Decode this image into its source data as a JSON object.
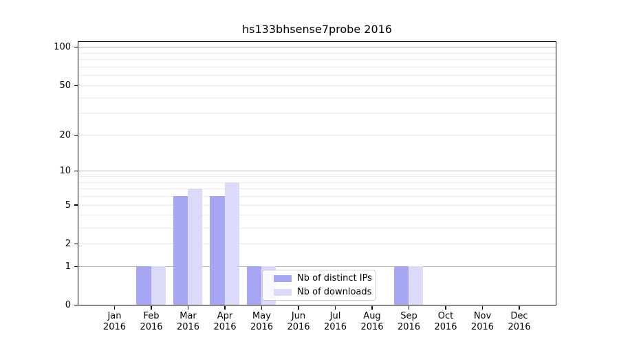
{
  "chart_data": {
    "type": "bar",
    "title": "hs133bhsense7probe 2016",
    "x_year": "2016",
    "categories": [
      "Jan",
      "Feb",
      "Mar",
      "Apr",
      "May",
      "Jun",
      "Jul",
      "Aug",
      "Sep",
      "Oct",
      "Nov",
      "Dec"
    ],
    "series": [
      {
        "name": "Nb of distinct IPs",
        "color": "#a6a6f4",
        "values": [
          0,
          1,
          6,
          6,
          1,
          0,
          0,
          0,
          1,
          0,
          0,
          0
        ]
      },
      {
        "name": "Nb of downloads",
        "color": "#dbdbf9",
        "values": [
          0,
          1,
          7,
          8,
          1,
          0,
          0,
          0,
          1,
          0,
          0,
          0
        ]
      }
    ],
    "yscale": "log1p",
    "ylim": [
      0,
      110
    ],
    "xlabel": "",
    "ylabel": "",
    "y_ticks": [
      0,
      1,
      2,
      5,
      10,
      20,
      50,
      100
    ],
    "y_gridlines_major": [
      1,
      10,
      100
    ],
    "y_gridlines_minor": [
      2,
      3,
      4,
      5,
      6,
      7,
      8,
      9,
      20,
      30,
      40,
      50,
      60,
      70,
      80,
      90
    ],
    "grid": "on",
    "legend_position": "lower center (inside axes)",
    "colors": {
      "major_grid": "#b3b3b3",
      "minor_grid": "#ebebeb",
      "spine": "#000000",
      "legend_border": "#cccccc",
      "background": "#ffffff"
    }
  }
}
